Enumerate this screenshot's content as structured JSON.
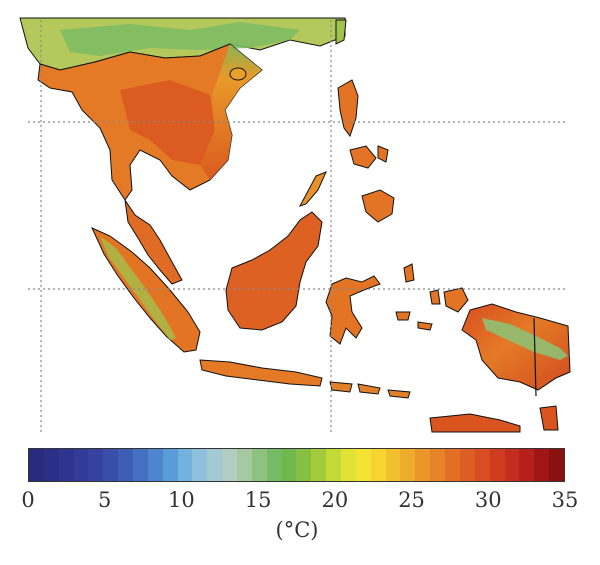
{
  "map": {
    "region": "Southeast Asia",
    "variable": "temperature",
    "grid": true,
    "graticule_style": "dotted"
  },
  "colorbar": {
    "min": 0,
    "max": 35,
    "ticks": [
      "0",
      "5",
      "10",
      "15",
      "20",
      "25",
      "30",
      "35"
    ],
    "unit": "(°C)",
    "colors": [
      "#2a2a7e",
      "#2c2f86",
      "#2f358e",
      "#323b97",
      "#3542a0",
      "#3a4ea9",
      "#3d5cb4",
      "#4470c2",
      "#4d86cf",
      "#5a9bd9",
      "#73b1df",
      "#8fc0dc",
      "#a3c9d3",
      "#b1cdc2",
      "#a6c9a2",
      "#8dc281",
      "#76bb64",
      "#6fb84c",
      "#86c043",
      "#a3cc3c",
      "#c2d938",
      "#e0e236",
      "#f3e433",
      "#f7d430",
      "#f2c02e",
      "#eeab2c",
      "#ea962a",
      "#e68328",
      "#e17026",
      "#dc5e24",
      "#d84d22",
      "#d03c20",
      "#c42d1d",
      "#b5201a",
      "#a01616",
      "#8a1111"
    ]
  }
}
